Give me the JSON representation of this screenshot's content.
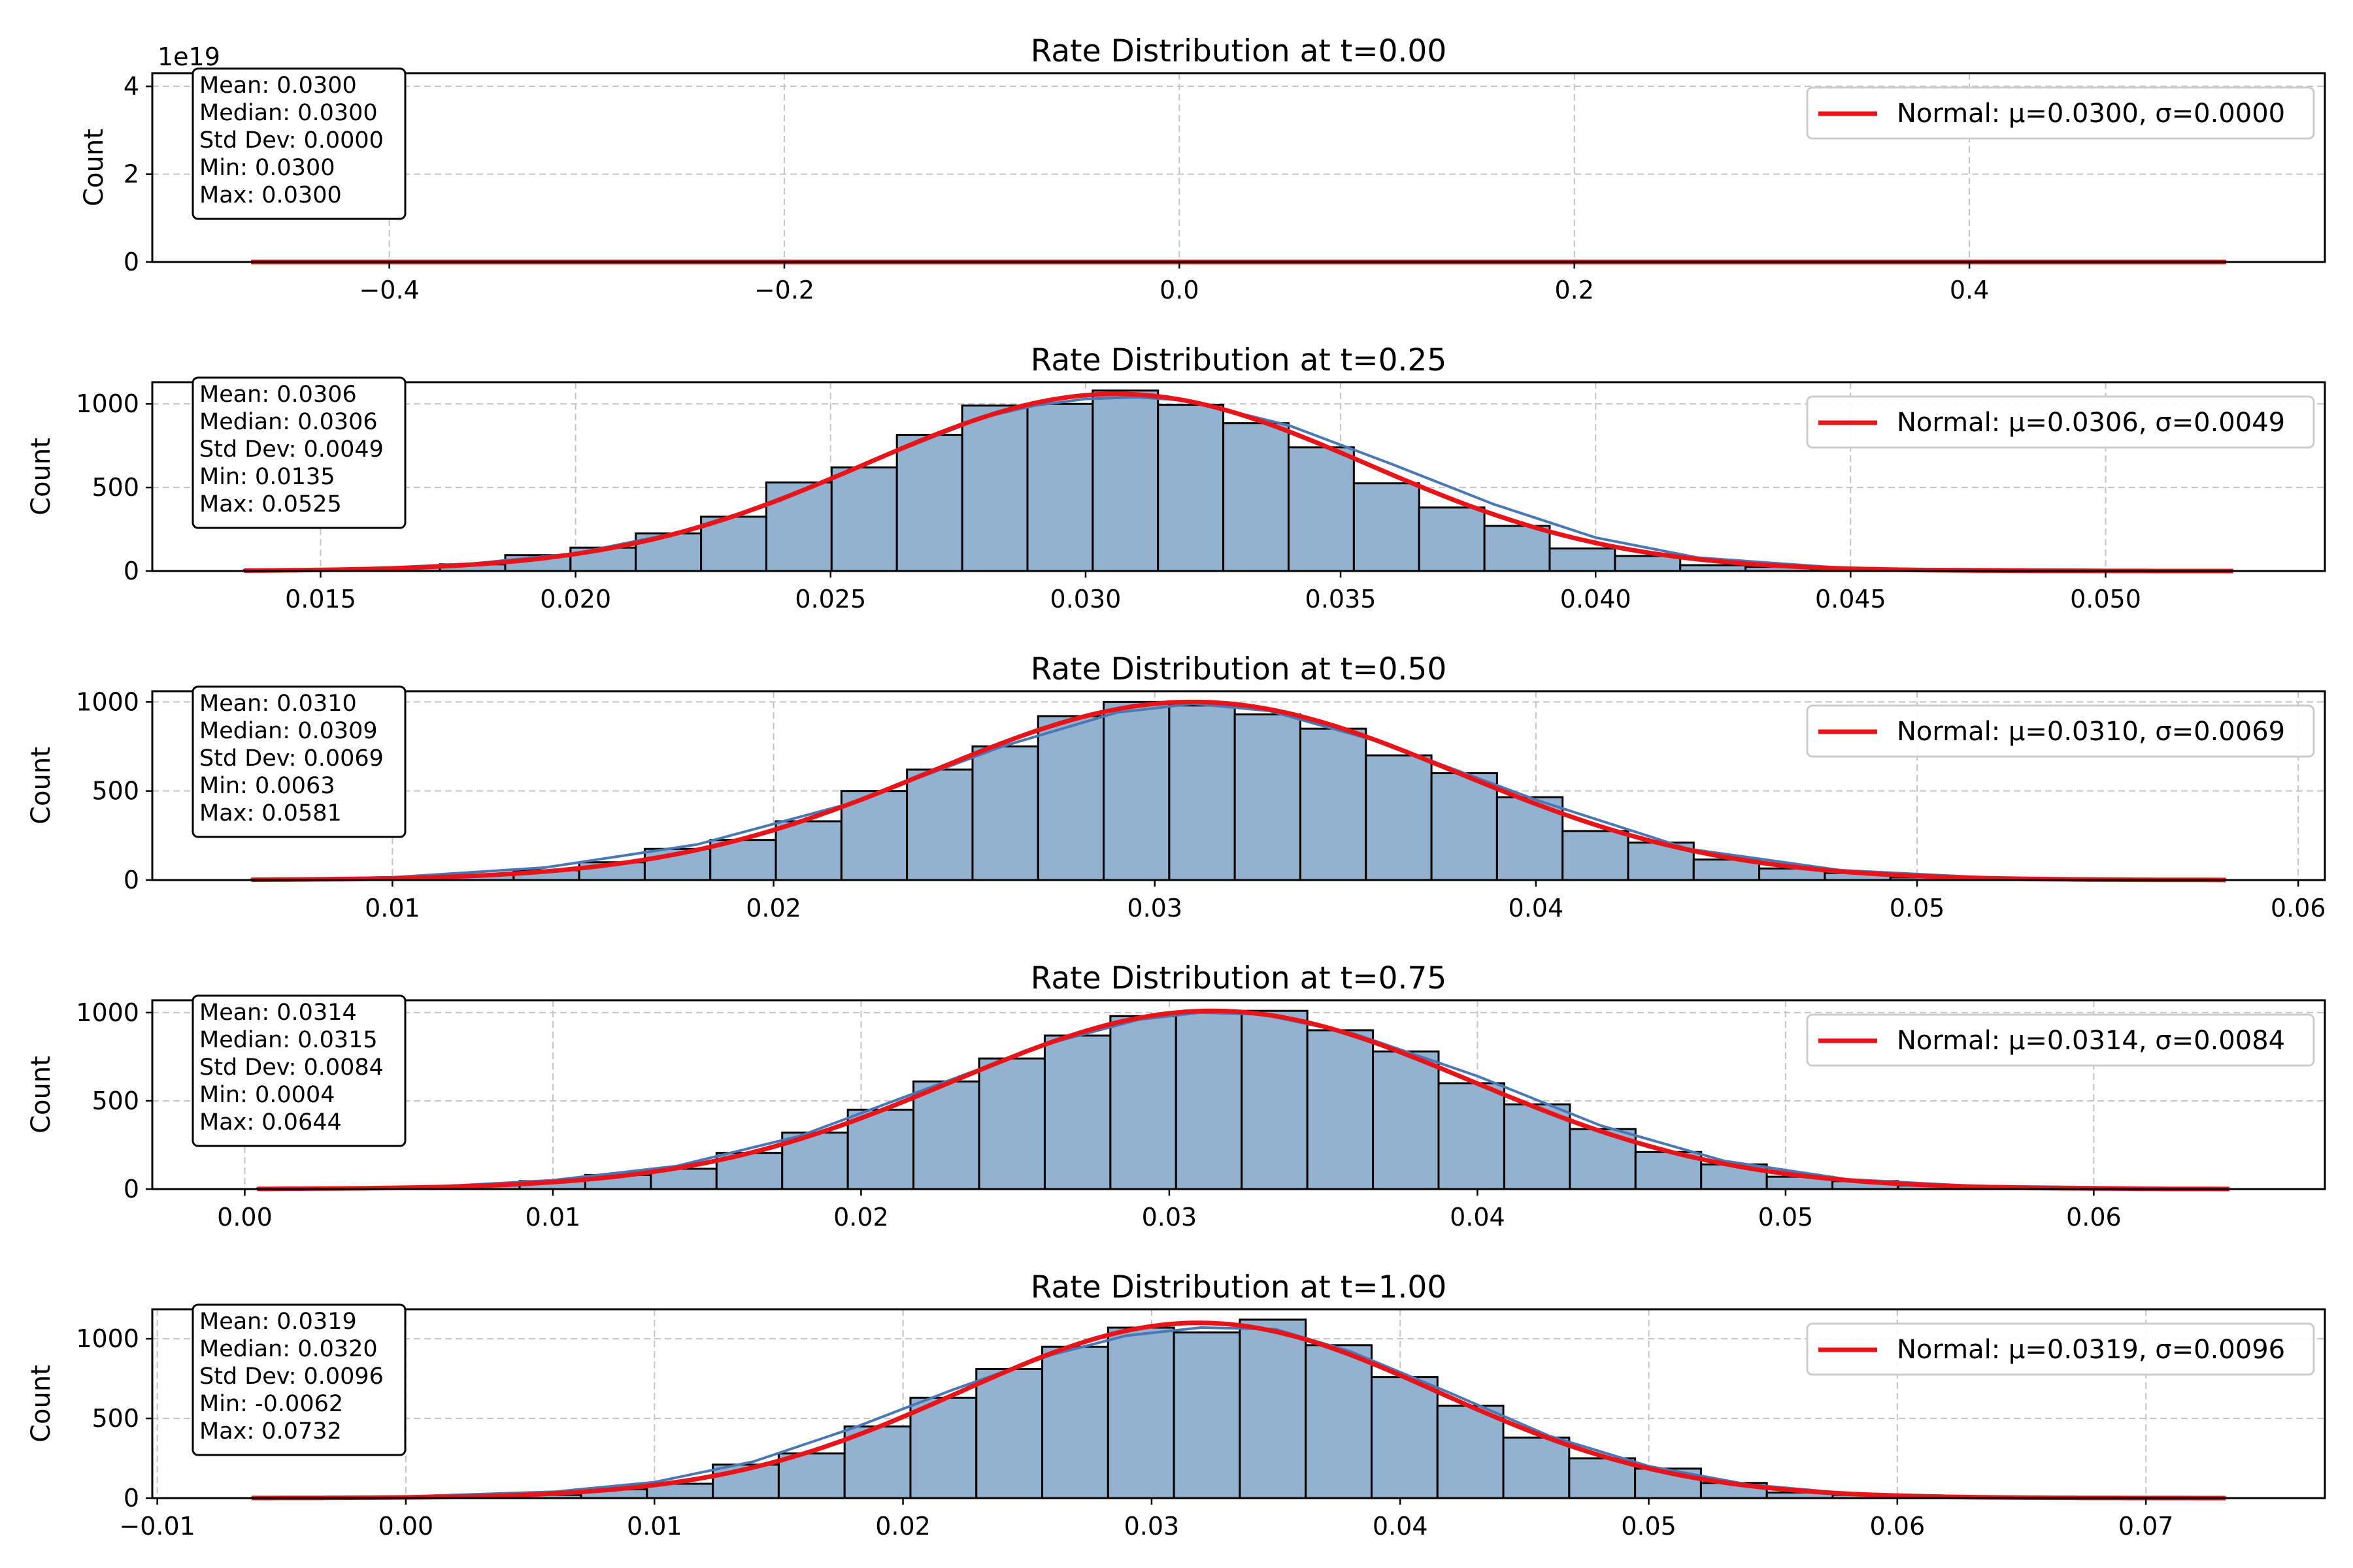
{
  "chart_data": [
    {
      "type": "bar",
      "title": "Rate Distribution at t=0.00",
      "ylabel": "Count",
      "xlabel": "",
      "xlim": [
        -0.52,
        0.58
      ],
      "ylim": [
        0,
        4.3e+19
      ],
      "xticks": [
        -0.4,
        -0.2,
        0.0,
        0.2,
        0.4
      ],
      "xtick_labels": [
        "−0.4",
        "−0.2",
        "0.0",
        "0.2",
        "0.4"
      ],
      "yticks": [
        0,
        2e+19,
        4e+19
      ],
      "ytick_labels": [
        "0",
        "2",
        "4"
      ],
      "offset_text": "1e19",
      "grid": true,
      "legend_position": "upper right",
      "bins": [],
      "kde_curve": {
        "name": "",
        "x": [],
        "y": []
      },
      "normal_curve": {
        "name": "Normal: μ=0.0300, σ=0.0000",
        "x": [
          -0.47,
          0.53
        ],
        "y": [
          0,
          0
        ]
      },
      "stats_box": [
        "Mean: 0.0300",
        "Median: 0.0300",
        "Std Dev: 0.0000",
        "Min: 0.0300",
        "Max: 0.0300"
      ]
    },
    {
      "type": "bar",
      "title": "Rate Distribution at t=0.25",
      "ylabel": "Count",
      "xlabel": "",
      "xlim": [
        0.0117,
        0.0543
      ],
      "ylim": [
        0,
        1130
      ],
      "xticks": [
        0.015,
        0.02,
        0.025,
        0.03,
        0.035,
        0.04,
        0.045,
        0.05
      ],
      "xtick_labels": [
        "0.015",
        "0.020",
        "0.025",
        "0.030",
        "0.035",
        "0.040",
        "0.045",
        "0.050"
      ],
      "yticks": [
        0,
        500,
        1000
      ],
      "ytick_labels": [
        "0",
        "500",
        "1000"
      ],
      "offset_text": "",
      "grid": true,
      "legend_position": "upper right",
      "bins": [
        {
          "x0": 0.0135,
          "x1": 0.01478,
          "count": 5
        },
        {
          "x0": 0.01478,
          "x1": 0.01606,
          "count": 10
        },
        {
          "x0": 0.01606,
          "x1": 0.01734,
          "count": 20
        },
        {
          "x0": 0.01734,
          "x1": 0.01862,
          "count": 40
        },
        {
          "x0": 0.01862,
          "x1": 0.0199,
          "count": 95
        },
        {
          "x0": 0.0199,
          "x1": 0.02118,
          "count": 140
        },
        {
          "x0": 0.02118,
          "x1": 0.02246,
          "count": 225
        },
        {
          "x0": 0.02246,
          "x1": 0.02374,
          "count": 325
        },
        {
          "x0": 0.02374,
          "x1": 0.02502,
          "count": 530
        },
        {
          "x0": 0.02502,
          "x1": 0.0263,
          "count": 620
        },
        {
          "x0": 0.0263,
          "x1": 0.02758,
          "count": 815
        },
        {
          "x0": 0.02758,
          "x1": 0.02886,
          "count": 990
        },
        {
          "x0": 0.02886,
          "x1": 0.03014,
          "count": 1000
        },
        {
          "x0": 0.03014,
          "x1": 0.03142,
          "count": 1080
        },
        {
          "x0": 0.03142,
          "x1": 0.0327,
          "count": 995
        },
        {
          "x0": 0.0327,
          "x1": 0.03398,
          "count": 885
        },
        {
          "x0": 0.03398,
          "x1": 0.03526,
          "count": 740
        },
        {
          "x0": 0.03526,
          "x1": 0.03654,
          "count": 525
        },
        {
          "x0": 0.03654,
          "x1": 0.03782,
          "count": 380
        },
        {
          "x0": 0.03782,
          "x1": 0.0391,
          "count": 270
        },
        {
          "x0": 0.0391,
          "x1": 0.04038,
          "count": 135
        },
        {
          "x0": 0.04038,
          "x1": 0.04166,
          "count": 90
        },
        {
          "x0": 0.04166,
          "x1": 0.04294,
          "count": 35
        },
        {
          "x0": 0.04294,
          "x1": 0.04422,
          "count": 25
        },
        {
          "x0": 0.04422,
          "x1": 0.0455,
          "count": 10
        },
        {
          "x0": 0.0455,
          "x1": 0.04678,
          "count": 5
        },
        {
          "x0": 0.04678,
          "x1": 0.04806,
          "count": 3
        },
        {
          "x0": 0.04806,
          "x1": 0.04934,
          "count": 2
        },
        {
          "x0": 0.04934,
          "x1": 0.05062,
          "count": 1
        },
        {
          "x0": 0.05062,
          "x1": 0.0525,
          "count": 1
        }
      ],
      "kde_curve": {
        "name": "",
        "x": [
          0.0135,
          0.016,
          0.018,
          0.02,
          0.022,
          0.024,
          0.026,
          0.028,
          0.029,
          0.03,
          0.031,
          0.032,
          0.034,
          0.036,
          0.038,
          0.04,
          0.042,
          0.045,
          0.0525
        ],
        "y": [
          5,
          15,
          45,
          105,
          230,
          420,
          680,
          920,
          990,
          1030,
          1040,
          1020,
          870,
          640,
          400,
          200,
          80,
          15,
          2
        ]
      },
      "normal_curve": {
        "name": "Normal: μ=0.0306, σ=0.0049",
        "mu": 0.0306,
        "sigma": 0.0049,
        "peak": 1060,
        "x": [
          0.0135,
          0.0525
        ]
      },
      "stats_box": [
        "Mean: 0.0306",
        "Median: 0.0306",
        "Std Dev: 0.0049",
        "Min: 0.0135",
        "Max: 0.0525"
      ]
    },
    {
      "type": "bar",
      "title": "Rate Distribution at t=0.50",
      "ylabel": "Count",
      "xlabel": "",
      "xlim": [
        0.0037,
        0.0607
      ],
      "ylim": [
        0,
        1060
      ],
      "xticks": [
        0.01,
        0.02,
        0.03,
        0.04,
        0.05,
        0.06
      ],
      "xtick_labels": [
        "0.01",
        "0.02",
        "0.03",
        "0.04",
        "0.05",
        "0.06"
      ],
      "yticks": [
        0,
        500,
        1000
      ],
      "ytick_labels": [
        "0",
        "500",
        "1000"
      ],
      "offset_text": "",
      "grid": true,
      "legend_position": "upper right",
      "bins": [
        {
          "x0": 0.0063,
          "x1": 0.00802,
          "count": 3
        },
        {
          "x0": 0.00802,
          "x1": 0.00974,
          "count": 6
        },
        {
          "x0": 0.00974,
          "x1": 0.01146,
          "count": 15
        },
        {
          "x0": 0.01146,
          "x1": 0.01318,
          "count": 30
        },
        {
          "x0": 0.01318,
          "x1": 0.0149,
          "count": 55
        },
        {
          "x0": 0.0149,
          "x1": 0.01662,
          "count": 100
        },
        {
          "x0": 0.01662,
          "x1": 0.01834,
          "count": 175
        },
        {
          "x0": 0.01834,
          "x1": 0.02006,
          "count": 225
        },
        {
          "x0": 0.02006,
          "x1": 0.02178,
          "count": 330
        },
        {
          "x0": 0.02178,
          "x1": 0.0235,
          "count": 500
        },
        {
          "x0": 0.0235,
          "x1": 0.02522,
          "count": 620
        },
        {
          "x0": 0.02522,
          "x1": 0.02694,
          "count": 750
        },
        {
          "x0": 0.02694,
          "x1": 0.02866,
          "count": 920
        },
        {
          "x0": 0.02866,
          "x1": 0.03038,
          "count": 1000
        },
        {
          "x0": 0.03038,
          "x1": 0.0321,
          "count": 980
        },
        {
          "x0": 0.0321,
          "x1": 0.03382,
          "count": 930
        },
        {
          "x0": 0.03382,
          "x1": 0.03554,
          "count": 850
        },
        {
          "x0": 0.03554,
          "x1": 0.03726,
          "count": 700
        },
        {
          "x0": 0.03726,
          "x1": 0.03898,
          "count": 600
        },
        {
          "x0": 0.03898,
          "x1": 0.0407,
          "count": 465
        },
        {
          "x0": 0.0407,
          "x1": 0.04242,
          "count": 275
        },
        {
          "x0": 0.04242,
          "x1": 0.04414,
          "count": 210
        },
        {
          "x0": 0.04414,
          "x1": 0.04586,
          "count": 115
        },
        {
          "x0": 0.04586,
          "x1": 0.04758,
          "count": 65
        },
        {
          "x0": 0.04758,
          "x1": 0.0493,
          "count": 40
        },
        {
          "x0": 0.0493,
          "x1": 0.05102,
          "count": 15
        },
        {
          "x0": 0.05102,
          "x1": 0.05274,
          "count": 8
        },
        {
          "x0": 0.05274,
          "x1": 0.05446,
          "count": 4
        },
        {
          "x0": 0.05446,
          "x1": 0.05618,
          "count": 2
        },
        {
          "x0": 0.05618,
          "x1": 0.0581,
          "count": 1
        }
      ],
      "kde_curve": {
        "name": "",
        "x": [
          0.0063,
          0.01,
          0.014,
          0.018,
          0.022,
          0.026,
          0.029,
          0.031,
          0.033,
          0.036,
          0.04,
          0.044,
          0.048,
          0.052,
          0.0581
        ],
        "y": [
          3,
          15,
          70,
          200,
          430,
          750,
          940,
          990,
          950,
          770,
          450,
          175,
          55,
          12,
          2
        ]
      },
      "normal_curve": {
        "name": "Normal: μ=0.0310, σ=0.0069",
        "mu": 0.031,
        "sigma": 0.0069,
        "peak": 1000,
        "x": [
          0.0063,
          0.0581
        ]
      },
      "stats_box": [
        "Mean: 0.0310",
        "Median: 0.0309",
        "Std Dev: 0.0069",
        "Min: 0.0063",
        "Max: 0.0581"
      ]
    },
    {
      "type": "bar",
      "title": "Rate Distribution at t=0.75",
      "ylabel": "Count",
      "xlabel": "",
      "xlim": [
        -0.003,
        0.0675
      ],
      "ylim": [
        0,
        1070
      ],
      "xticks": [
        0.0,
        0.01,
        0.02,
        0.03,
        0.04,
        0.05,
        0.06
      ],
      "xtick_labels": [
        "0.00",
        "0.01",
        "0.02",
        "0.03",
        "0.04",
        "0.05",
        "0.06"
      ],
      "yticks": [
        0,
        500,
        1000
      ],
      "ytick_labels": [
        "0",
        "500",
        "1000"
      ],
      "offset_text": "",
      "grid": true,
      "legend_position": "upper right",
      "bins": [
        {
          "x0": 0.0004,
          "x1": 0.00253,
          "count": 3
        },
        {
          "x0": 0.00253,
          "x1": 0.00466,
          "count": 5
        },
        {
          "x0": 0.00466,
          "x1": 0.00679,
          "count": 10
        },
        {
          "x0": 0.00679,
          "x1": 0.00892,
          "count": 20
        },
        {
          "x0": 0.00892,
          "x1": 0.01105,
          "count": 45
        },
        {
          "x0": 0.01105,
          "x1": 0.01318,
          "count": 80
        },
        {
          "x0": 0.01318,
          "x1": 0.01531,
          "count": 115
        },
        {
          "x0": 0.01531,
          "x1": 0.01744,
          "count": 205
        },
        {
          "x0": 0.01744,
          "x1": 0.01957,
          "count": 320
        },
        {
          "x0": 0.01957,
          "x1": 0.0217,
          "count": 450
        },
        {
          "x0": 0.0217,
          "x1": 0.02383,
          "count": 610
        },
        {
          "x0": 0.02383,
          "x1": 0.02596,
          "count": 740
        },
        {
          "x0": 0.02596,
          "x1": 0.02809,
          "count": 870
        },
        {
          "x0": 0.02809,
          "x1": 0.03022,
          "count": 980
        },
        {
          "x0": 0.03022,
          "x1": 0.03235,
          "count": 1000
        },
        {
          "x0": 0.03235,
          "x1": 0.03448,
          "count": 1010
        },
        {
          "x0": 0.03448,
          "x1": 0.03661,
          "count": 900
        },
        {
          "x0": 0.03661,
          "x1": 0.03874,
          "count": 780
        },
        {
          "x0": 0.03874,
          "x1": 0.04087,
          "count": 600
        },
        {
          "x0": 0.04087,
          "x1": 0.043,
          "count": 480
        },
        {
          "x0": 0.043,
          "x1": 0.04513,
          "count": 340
        },
        {
          "x0": 0.04513,
          "x1": 0.04726,
          "count": 210
        },
        {
          "x0": 0.04726,
          "x1": 0.04939,
          "count": 140
        },
        {
          "x0": 0.04939,
          "x1": 0.05152,
          "count": 70
        },
        {
          "x0": 0.05152,
          "x1": 0.05365,
          "count": 45
        },
        {
          "x0": 0.05365,
          "x1": 0.05578,
          "count": 20
        },
        {
          "x0": 0.05578,
          "x1": 0.05791,
          "count": 10
        },
        {
          "x0": 0.05791,
          "x1": 0.06004,
          "count": 5
        },
        {
          "x0": 0.06004,
          "x1": 0.06217,
          "count": 3
        },
        {
          "x0": 0.06217,
          "x1": 0.0644,
          "count": 1
        }
      ],
      "kde_curve": {
        "name": "",
        "x": [
          0.0004,
          0.006,
          0.01,
          0.014,
          0.018,
          0.022,
          0.026,
          0.029,
          0.031,
          0.033,
          0.036,
          0.04,
          0.044,
          0.048,
          0.052,
          0.056,
          0.0644
        ],
        "y": [
          3,
          12,
          50,
          130,
          300,
          560,
          820,
          960,
          1000,
          990,
          880,
          640,
          360,
          160,
          55,
          18,
          2
        ]
      },
      "normal_curve": {
        "name": "Normal: μ=0.0314, σ=0.0084",
        "mu": 0.0314,
        "sigma": 0.0084,
        "peak": 1010,
        "x": [
          0.0004,
          0.0644
        ]
      },
      "stats_box": [
        "Mean: 0.0314",
        "Median: 0.0315",
        "Std Dev: 0.0084",
        "Min: 0.0004",
        "Max: 0.0644"
      ]
    },
    {
      "type": "bar",
      "title": "Rate Distribution at t=1.00",
      "ylabel": "Count",
      "xlabel": "",
      "xlim": [
        -0.0102,
        0.0772
      ],
      "ylim": [
        0,
        1185
      ],
      "xticks": [
        -0.01,
        0.0,
        0.01,
        0.02,
        0.03,
        0.04,
        0.05,
        0.06,
        0.07
      ],
      "xtick_labels": [
        "−0.01",
        "0.00",
        "0.01",
        "0.02",
        "0.03",
        "0.04",
        "0.05",
        "0.06",
        "0.07"
      ],
      "yticks": [
        0,
        500,
        1000
      ],
      "ytick_labels": [
        "0",
        "500",
        "1000"
      ],
      "offset_text": "",
      "grid": true,
      "legend_position": "upper right",
      "bins": [
        {
          "x0": -0.0062,
          "x1": -0.00355,
          "count": 2
        },
        {
          "x0": -0.00355,
          "x1": -0.0009,
          "count": 4
        },
        {
          "x0": -0.0009,
          "x1": 0.00175,
          "count": 8
        },
        {
          "x0": 0.00175,
          "x1": 0.0044,
          "count": 15
        },
        {
          "x0": 0.0044,
          "x1": 0.00705,
          "count": 20
        },
        {
          "x0": 0.00705,
          "x1": 0.0097,
          "count": 55
        },
        {
          "x0": 0.0097,
          "x1": 0.01235,
          "count": 90
        },
        {
          "x0": 0.01235,
          "x1": 0.015,
          "count": 210
        },
        {
          "x0": 0.015,
          "x1": 0.01765,
          "count": 280
        },
        {
          "x0": 0.01765,
          "x1": 0.0203,
          "count": 450
        },
        {
          "x0": 0.0203,
          "x1": 0.02295,
          "count": 630
        },
        {
          "x0": 0.02295,
          "x1": 0.0256,
          "count": 810
        },
        {
          "x0": 0.0256,
          "x1": 0.02825,
          "count": 950
        },
        {
          "x0": 0.02825,
          "x1": 0.0309,
          "count": 1070
        },
        {
          "x0": 0.0309,
          "x1": 0.03355,
          "count": 1040
        },
        {
          "x0": 0.03355,
          "x1": 0.0362,
          "count": 1120
        },
        {
          "x0": 0.0362,
          "x1": 0.03885,
          "count": 960
        },
        {
          "x0": 0.03885,
          "x1": 0.0415,
          "count": 760
        },
        {
          "x0": 0.0415,
          "x1": 0.04415,
          "count": 580
        },
        {
          "x0": 0.04415,
          "x1": 0.0468,
          "count": 380
        },
        {
          "x0": 0.0468,
          "x1": 0.04945,
          "count": 250
        },
        {
          "x0": 0.04945,
          "x1": 0.0521,
          "count": 185
        },
        {
          "x0": 0.0521,
          "x1": 0.05475,
          "count": 95
        },
        {
          "x0": 0.05475,
          "x1": 0.0574,
          "count": 35
        },
        {
          "x0": 0.0574,
          "x1": 0.06005,
          "count": 20
        },
        {
          "x0": 0.06005,
          "x1": 0.0627,
          "count": 10
        },
        {
          "x0": 0.0627,
          "x1": 0.06535,
          "count": 5
        },
        {
          "x0": 0.06535,
          "x1": 0.068,
          "count": 3
        },
        {
          "x0": 0.068,
          "x1": 0.07065,
          "count": 2
        },
        {
          "x0": 0.07065,
          "x1": 0.0732,
          "count": 1
        }
      ],
      "kde_curve": {
        "name": "",
        "x": [
          -0.0062,
          0.0,
          0.006,
          0.01,
          0.014,
          0.018,
          0.022,
          0.026,
          0.029,
          0.032,
          0.035,
          0.038,
          0.042,
          0.046,
          0.05,
          0.054,
          0.058,
          0.064,
          0.0732
        ],
        "y": [
          2,
          10,
          40,
          100,
          230,
          440,
          680,
          900,
          1020,
          1070,
          1060,
          920,
          660,
          390,
          200,
          85,
          30,
          6,
          1
        ]
      },
      "normal_curve": {
        "name": "Normal: μ=0.0319, σ=0.0096",
        "mu": 0.0319,
        "sigma": 0.0096,
        "peak": 1100,
        "x": [
          -0.0062,
          0.0732
        ]
      },
      "stats_box": [
        "Mean: 0.0319",
        "Median: 0.0320",
        "Std Dev: 0.0096",
        "Min: -0.0062",
        "Max: 0.0732"
      ]
    }
  ],
  "colors": {
    "bar_fill": "#92b2d0",
    "bar_edge": "#000000",
    "kde_line": "#4a78b4",
    "normal_line": "#e8141a",
    "grid": "#c4c4c4"
  }
}
